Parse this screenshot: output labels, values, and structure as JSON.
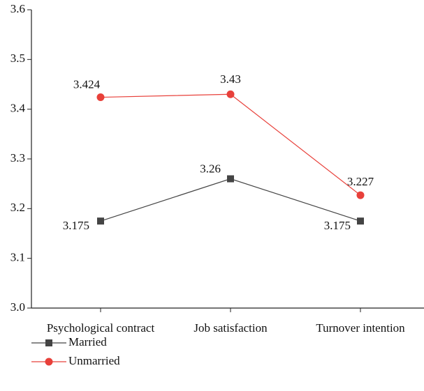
{
  "chart_data": {
    "type": "line",
    "categories": [
      "Psychological contract",
      "Job satisfaction",
      "Turnover intention"
    ],
    "series": [
      {
        "name": "Married",
        "color": "#444444",
        "marker": "square",
        "values": [
          3.175,
          3.26,
          3.175
        ]
      },
      {
        "name": "Unmarried",
        "color": "#e8403a",
        "marker": "circle",
        "values": [
          3.424,
          3.43,
          3.227
        ]
      }
    ],
    "ylim": [
      3.0,
      3.6
    ],
    "yticks": [
      {
        "value": 3.0,
        "label": "3.0"
      },
      3.1,
      3.2,
      3.3,
      3.4,
      3.5,
      3.6
    ],
    "grid": false,
    "legend": "bottom-left"
  }
}
